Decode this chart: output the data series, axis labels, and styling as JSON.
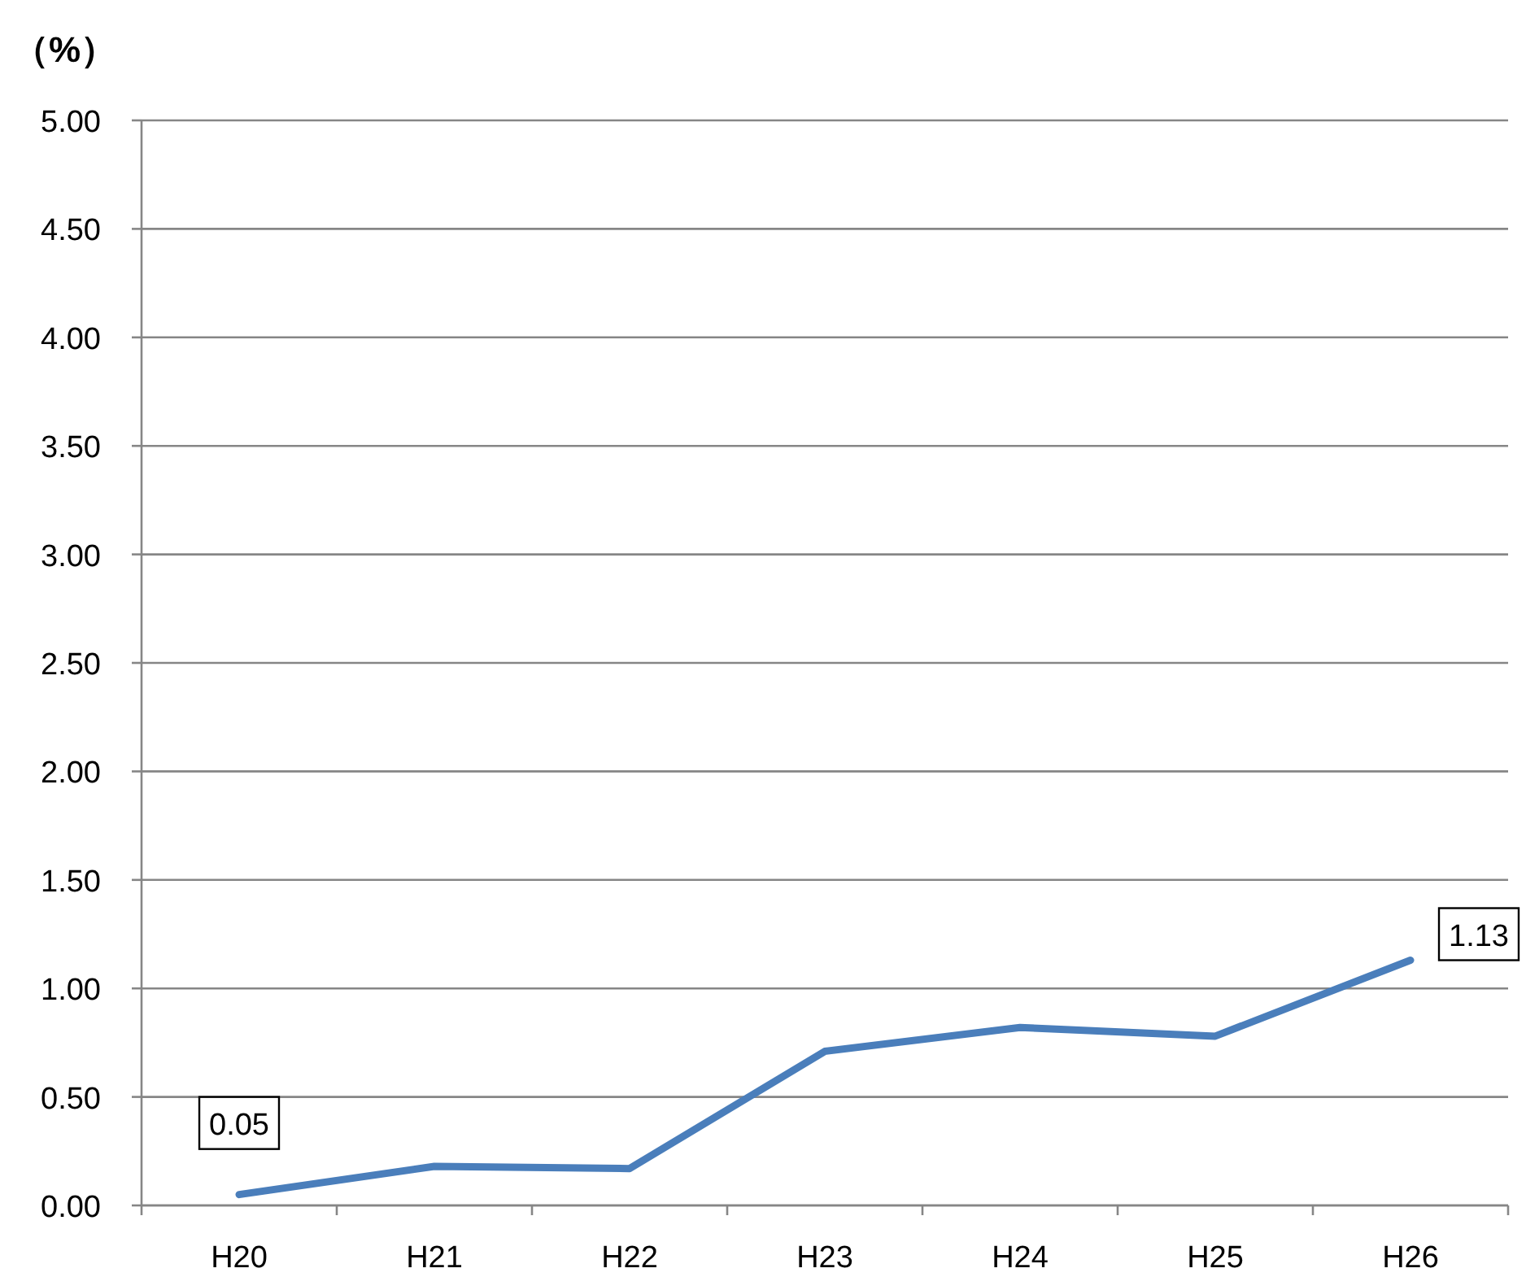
{
  "chart_data": {
    "type": "line",
    "ylabel": "（%）",
    "categories": [
      "H20",
      "H21",
      "H22",
      "H23",
      "H24",
      "H25",
      "H26"
    ],
    "values": [
      0.05,
      0.18,
      0.17,
      0.71,
      0.82,
      0.78,
      1.13
    ],
    "value_labels": [
      "0.05",
      null,
      null,
      null,
      null,
      null,
      "1.13"
    ],
    "color": "#4a7ebb",
    "ylim": [
      0,
      5
    ],
    "yticks": [
      {
        "value": 0,
        "label": "0.00"
      },
      {
        "value": 0.5,
        "label": "0.50"
      },
      {
        "value": 1,
        "label": "1.00"
      },
      {
        "value": 1.5,
        "label": "1.50"
      },
      {
        "value": 2,
        "label": "2.00"
      },
      {
        "value": 2.5,
        "label": "2.50"
      },
      {
        "value": 3,
        "label": "3.00"
      },
      {
        "value": 3.5,
        "label": "3.50"
      },
      {
        "value": 4,
        "label": "4.00"
      },
      {
        "value": 4.5,
        "label": "4.50"
      },
      {
        "value": 5,
        "label": "5.00"
      }
    ],
    "grid": "y"
  }
}
